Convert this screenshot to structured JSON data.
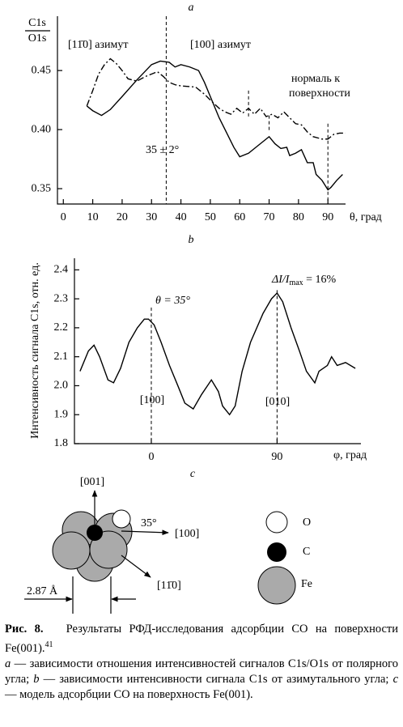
{
  "chart_data": [
    {
      "type": "line",
      "panel": "a",
      "ylabel": [
        "C1s",
        "O1s"
      ],
      "xlabel": "θ, град",
      "xlim": [
        -2,
        96
      ],
      "ylim": [
        0.337,
        0.496
      ],
      "xticks": [
        0,
        10,
        20,
        30,
        40,
        50,
        60,
        70,
        80,
        90
      ],
      "yticks": [
        0.35,
        {
          "value": 0.4,
          "label": "0.40"
        },
        0.45
      ],
      "vlines": [
        35,
        63,
        70,
        90
      ],
      "annotations": [
        "[11̄0] азимут",
        "[100] азимут",
        "нормаль к",
        "поверхности",
        "35 ± 2°"
      ],
      "series": [
        {
          "style": "solid",
          "color": "#000000",
          "x": [
            8,
            10,
            13,
            16,
            20,
            25,
            30,
            33,
            36,
            38,
            40,
            43,
            46,
            48,
            50,
            53,
            56,
            58,
            60,
            63,
            66,
            69,
            70,
            72,
            74,
            76,
            77,
            79,
            81,
            83,
            85,
            86,
            88,
            89,
            90,
            91,
            93,
            95
          ],
          "values": [
            0.42,
            0.416,
            0.412,
            0.417,
            0.428,
            0.442,
            0.455,
            0.458,
            0.457,
            0.453,
            0.455,
            0.453,
            0.45,
            0.44,
            0.428,
            0.41,
            0.395,
            0.385,
            0.377,
            0.38,
            0.386,
            0.392,
            0.394,
            0.388,
            0.384,
            0.385,
            0.378,
            0.38,
            0.383,
            0.372,
            0.372,
            0.362,
            0.357,
            0.353,
            0.349,
            0.351,
            0.357,
            0.362
          ]
        },
        {
          "style": "dashdot",
          "color": "#000000",
          "x": [
            8,
            10,
            12,
            14,
            16,
            18,
            20,
            22,
            25,
            28,
            30,
            32,
            34,
            36,
            38,
            40,
            45,
            48,
            50,
            53,
            55,
            57,
            59,
            61,
            63,
            65,
            67,
            69,
            71,
            73,
            75,
            77,
            79,
            81,
            83,
            85,
            88,
            90,
            92,
            94,
            96
          ],
          "values": [
            0.42,
            0.433,
            0.447,
            0.455,
            0.46,
            0.456,
            0.45,
            0.443,
            0.441,
            0.445,
            0.447,
            0.449,
            0.445,
            0.44,
            0.438,
            0.437,
            0.436,
            0.43,
            0.425,
            0.418,
            0.415,
            0.413,
            0.418,
            0.414,
            0.418,
            0.413,
            0.418,
            0.411,
            0.413,
            0.41,
            0.415,
            0.41,
            0.405,
            0.404,
            0.398,
            0.394,
            0.392,
            0.392,
            0.396,
            0.397,
            0.397
          ]
        }
      ]
    },
    {
      "type": "line",
      "panel": "b",
      "ylabel": "Интенсивность сигнала C1s, отн. ед.",
      "xlabel": "φ, град",
      "xlim": [
        -55,
        150
      ],
      "ylim": [
        1.8,
        2.44
      ],
      "xticks": [
        0,
        90
      ],
      "yticks": [
        1.8,
        1.9,
        {
          "value": 2,
          "label": "2.0"
        },
        2.1,
        2.2,
        2.3,
        2.4
      ],
      "vlines": [
        0,
        90
      ],
      "annotations": [
        "θ = 35°",
        "ΔI/I",
        "max",
        " = 16%",
        "[100]",
        "[010]"
      ],
      "series": [
        {
          "style": "solid",
          "color": "#000000",
          "x": [
            -51,
            -45,
            -41,
            -37,
            -31,
            -27,
            -22,
            -16,
            -10,
            -5,
            -2,
            2,
            7,
            13,
            19,
            24,
            30,
            36,
            43,
            48,
            51,
            56,
            60,
            65,
            71,
            80,
            86,
            90,
            94,
            100,
            106,
            111,
            117,
            120,
            126,
            129,
            133,
            139,
            146
          ],
          "values": [
            2.05,
            2.12,
            2.14,
            2.1,
            2.02,
            2.01,
            2.06,
            2.15,
            2.2,
            2.23,
            2.23,
            2.21,
            2.15,
            2.07,
            2.0,
            1.94,
            1.92,
            1.97,
            2.02,
            1.98,
            1.93,
            1.9,
            1.93,
            2.05,
            2.15,
            2.25,
            2.3,
            2.32,
            2.29,
            2.2,
            2.12,
            2.05,
            2.01,
            2.05,
            2.07,
            2.1,
            2.07,
            2.08,
            2.06
          ]
        }
      ]
    }
  ],
  "diagram": {
    "panel": "c",
    "axes": [
      "[001]",
      "[100]",
      "[11̄0]"
    ],
    "angle": "35°",
    "spacing": "2.87 Å",
    "legend": [
      "O",
      "C",
      "Fe"
    ]
  },
  "caption": {
    "label": "Рис. 8.",
    "text": "Результаты РФД-исследования адсорбции CO на поверхности Fe(001).",
    "ref": "41",
    "items": [
      {
        "letter": "a",
        "text": " — зависимости отношения интенсивностей сигналов C1s/O1s от полярного угла; "
      },
      {
        "letter": "b",
        "text": " — зависимости интенсивности сигнала C1s от азимутального угла; "
      },
      {
        "letter": "c",
        "text": " — модель адсорбции CO на поверхность Fe(001)."
      }
    ]
  }
}
